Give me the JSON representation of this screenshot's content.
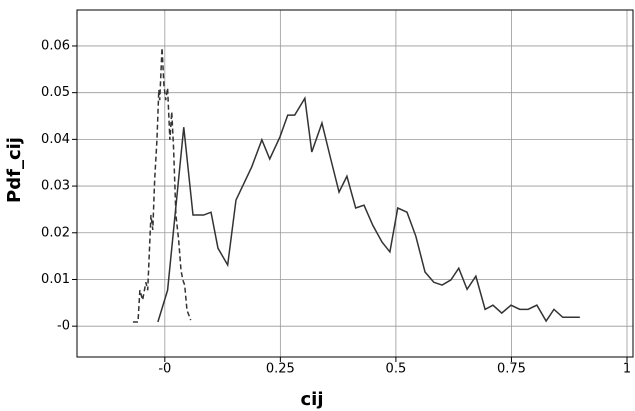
{
  "chart_data": {
    "type": "line",
    "x_label": "cij",
    "y_label": "Pdf_cij",
    "xlim": [
      -0.19,
      1.013
    ],
    "ylim": [
      -0.0066,
      0.0677
    ],
    "xticks": [
      {
        "value": 0,
        "label": "-0"
      },
      0.25,
      0.5,
      0.75,
      1
    ],
    "yticks": [
      {
        "value": 0,
        "label": "-0"
      },
      0.01,
      0.02,
      0.03,
      0.04,
      0.05,
      0.06
    ],
    "grid": true,
    "series": [
      {
        "color": "#333333",
        "linestyle": "solid",
        "x": [
          -0.015,
          0.006,
          0.041,
          0.061,
          0.084,
          0.1,
          0.115,
          0.136,
          0.154,
          0.188,
          0.21,
          0.227,
          0.249,
          0.266,
          0.281,
          0.303,
          0.318,
          0.34,
          0.357,
          0.377,
          0.394,
          0.413,
          0.431,
          0.45,
          0.47,
          0.487,
          0.504,
          0.524,
          0.543,
          0.563,
          0.582,
          0.6,
          0.619,
          0.636,
          0.654,
          0.673,
          0.693,
          0.71,
          0.729,
          0.749,
          0.768,
          0.786,
          0.805,
          0.825,
          0.842,
          0.861,
          0.879,
          0.898
        ],
        "values": [
          0.0009,
          0.0077,
          0.0426,
          0.0238,
          0.0238,
          0.0244,
          0.0167,
          0.0131,
          0.027,
          0.0341,
          0.0399,
          0.0358,
          0.0405,
          0.0452,
          0.0452,
          0.0488,
          0.0373,
          0.0435,
          0.0366,
          0.0287,
          0.0321,
          0.0253,
          0.0259,
          0.0216,
          0.018,
          0.0159,
          0.0253,
          0.0244,
          0.0193,
          0.0116,
          0.0094,
          0.0088,
          0.0099,
          0.0124,
          0.0079,
          0.0107,
          0.0036,
          0.0045,
          0.0028,
          0.0045,
          0.0036,
          0.0036,
          0.0045,
          0.0011,
          0.0036,
          0.0019,
          0.0019,
          0.0019
        ]
      },
      {
        "color": "#333333",
        "linestyle": "dashed",
        "x": [
          -0.069,
          -0.058,
          -0.054,
          -0.048,
          -0.041,
          -0.037,
          -0.03,
          -0.026,
          -0.022,
          -0.017,
          -0.013,
          -0.011,
          -0.006,
          -0.002,
          0.002,
          0.006,
          0.011,
          0.015,
          0.019,
          0.024,
          0.03,
          0.035,
          0.039,
          0.043,
          0.048,
          0.052,
          0.056
        ],
        "values": [
          0.0009,
          0.0009,
          0.0077,
          0.0056,
          0.0094,
          0.0077,
          0.0238,
          0.0206,
          0.0313,
          0.0399,
          0.0506,
          0.0484,
          0.0596,
          0.0517,
          0.0484,
          0.051,
          0.0399,
          0.0459,
          0.038,
          0.0238,
          0.0184,
          0.012,
          0.0099,
          0.0088,
          0.0034,
          0.0024,
          0.0013
        ]
      }
    ]
  }
}
